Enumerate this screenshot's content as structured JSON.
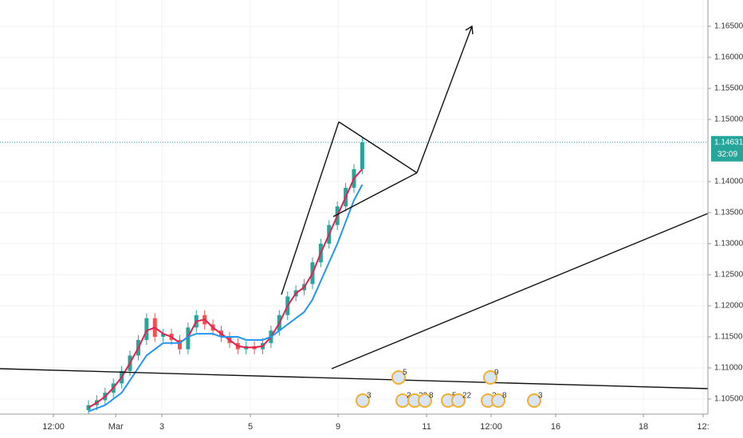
{
  "chart_data": {
    "type": "candlestick",
    "x": [
      24,
      26.25,
      28.5,
      30.75,
      33,
      35.25,
      37.5,
      39.75,
      42,
      44.25,
      46.5,
      48.75,
      51,
      53.25,
      55.5,
      57.75,
      60,
      62.25,
      64.5,
      66.75,
      69,
      71.25,
      73.5,
      75.75,
      78,
      80.25,
      82.5,
      84.75,
      87,
      89.25,
      91.5,
      93.75,
      96,
      98.25
    ],
    "open": [
      1.1032,
      1.104,
      1.1048,
      1.106,
      1.1075,
      1.1095,
      1.112,
      1.1145,
      1.118,
      1.115,
      1.1155,
      1.1145,
      1.113,
      1.1165,
      1.1185,
      1.117,
      1.116,
      1.115,
      1.114,
      1.113,
      1.1135,
      1.113,
      1.114,
      1.116,
      1.1185,
      1.1215,
      1.1225,
      1.1235,
      1.127,
      1.13,
      1.133,
      1.136,
      1.139,
      1.142
    ],
    "high": [
      1.1048,
      1.1056,
      1.1068,
      1.1083,
      1.1103,
      1.1128,
      1.1153,
      1.1188,
      1.1188,
      1.1163,
      1.1163,
      1.1153,
      1.1173,
      1.1193,
      1.1193,
      1.1178,
      1.1168,
      1.1158,
      1.1148,
      1.1143,
      1.1143,
      1.1148,
      1.1168,
      1.1193,
      1.1223,
      1.1233,
      1.1243,
      1.1278,
      1.1308,
      1.1338,
      1.1368,
      1.1398,
      1.1428,
      1.1471
    ],
    "low": [
      1.1024,
      1.1032,
      1.104,
      1.1052,
      1.1067,
      1.1087,
      1.1112,
      1.1137,
      1.1142,
      1.1142,
      1.1137,
      1.1122,
      1.1122,
      1.1157,
      1.1162,
      1.1152,
      1.1142,
      1.1132,
      1.1122,
      1.1122,
      1.1122,
      1.1122,
      1.1132,
      1.1152,
      1.1177,
      1.1207,
      1.1217,
      1.1227,
      1.1262,
      1.1292,
      1.1322,
      1.1352,
      1.1382,
      1.1412
    ],
    "close": [
      1.104,
      1.1048,
      1.106,
      1.1075,
      1.1095,
      1.112,
      1.1145,
      1.118,
      1.115,
      1.1155,
      1.1145,
      1.113,
      1.1165,
      1.1185,
      1.117,
      1.116,
      1.115,
      1.114,
      1.113,
      1.1135,
      1.113,
      1.114,
      1.116,
      1.1185,
      1.1215,
      1.1225,
      1.1235,
      1.127,
      1.13,
      1.133,
      1.136,
      1.139,
      1.142,
      1.1463
    ],
    "up_color": "#26a69a",
    "down_color": "#ef5350",
    "series": [
      {
        "color": "#e91e4f",
        "values": [
          1.1036,
          1.1044,
          1.1054,
          1.1068,
          1.1085,
          1.1108,
          1.1132,
          1.116,
          1.1165,
          1.1155,
          1.115,
          1.114,
          1.115,
          1.1175,
          1.1178,
          1.1165,
          1.1155,
          1.1145,
          1.1135,
          1.1133,
          1.1133,
          1.1135,
          1.115,
          1.1172,
          1.12,
          1.122,
          1.123,
          1.1252,
          1.1285,
          1.1315,
          1.1345,
          1.1375,
          1.1405,
          1.142
        ]
      },
      {
        "color": "#2196f3",
        "values": [
          1.103,
          1.1035,
          1.104,
          1.105,
          1.106,
          1.108,
          1.11,
          1.112,
          1.113,
          1.114,
          1.114,
          1.114,
          1.115,
          1.1155,
          1.1155,
          1.1155,
          1.115,
          1.115,
          1.115,
          1.1145,
          1.1145,
          1.1145,
          1.115,
          1.116,
          1.117,
          1.118,
          1.119,
          1.121,
          1.124,
          1.127,
          1.13,
          1.1335,
          1.137,
          1.1395
        ]
      }
    ],
    "xlim": [
      0,
      192
    ],
    "ylim": [
      1.10256,
      1.16923
    ],
    "xticks": [
      {
        "value": 14.5,
        "label": "12:00"
      },
      {
        "value": 31.4,
        "label": "Mar"
      },
      {
        "value": 43.9,
        "label": "3"
      },
      {
        "value": 67.9,
        "label": "5"
      },
      {
        "value": 91.7,
        "label": "9"
      },
      {
        "value": 115.7,
        "label": "11"
      },
      {
        "value": 133.2,
        "label": "12:00"
      },
      {
        "value": 150.7,
        "label": "16"
      },
      {
        "value": 174.5,
        "label": "18"
      },
      {
        "value": 190.7,
        "label": "12:"
      }
    ],
    "yticks": [
      {
        "value": 1.105,
        "label": "1.10500"
      },
      {
        "value": 1.11,
        "label": "1.11000"
      },
      {
        "value": 1.115,
        "label": "1.11500"
      },
      {
        "value": 1.12,
        "label": "1.12000"
      },
      {
        "value": 1.125,
        "label": "1.12500"
      },
      {
        "value": 1.13,
        "label": "1.13000"
      },
      {
        "value": 1.135,
        "label": "1.13500"
      },
      {
        "value": 1.14,
        "label": "1.14000"
      },
      {
        "value": 1.15,
        "label": "1.15000"
      },
      {
        "value": 1.155,
        "label": "1.15500"
      },
      {
        "value": 1.16,
        "label": "1.16000"
      },
      {
        "value": 1.165,
        "label": "1.16500"
      }
    ],
    "last_price": 1.14631,
    "countdown": "32:09",
    "events": [
      "5",
      "9",
      "3",
      "2",
      "22",
      "8",
      "5",
      "22",
      "2",
      "8",
      "3"
    ]
  }
}
